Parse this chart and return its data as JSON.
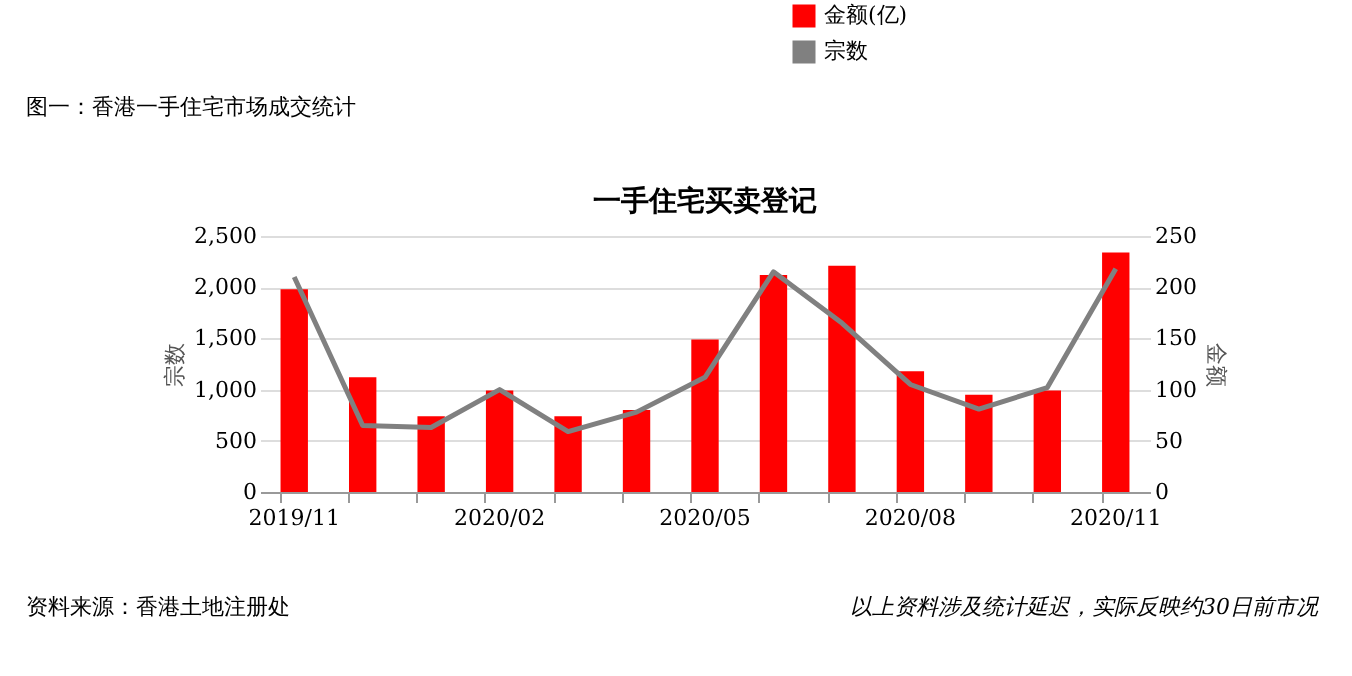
{
  "chart_data": {
    "type": "bar",
    "title": "一手住宅买卖登记",
    "annotations": [
      "图一：香港一手住宅市场成交统计",
      "资料来源：香港土地注册处",
      "以上资料涉及统计延迟，实际反映约30日前市况"
    ],
    "categories": [
      "2019/11",
      null,
      null,
      "2020/02",
      null,
      null,
      "2020/05",
      null,
      null,
      "2020/08",
      null,
      null,
      "2020/11"
    ],
    "series": [
      {
        "name": "金额(亿)",
        "axis": "y2",
        "color": "#ff0000",
        "values": [
          198,
          112,
          74,
          99,
          74,
          80,
          149,
          212,
          221,
          118,
          95,
          99,
          234
        ]
      },
      {
        "name": "宗数",
        "type": "line",
        "axis": "y",
        "color": "#808080",
        "values": [
          2100,
          650,
          630,
          1000,
          590,
          780,
          1120,
          2150,
          1650,
          1050,
          810,
          1020,
          2180
        ]
      }
    ],
    "ylabel": "宗数",
    "y2label": "金额",
    "ylim": [
      0,
      2500
    ],
    "yticks": [
      0,
      {
        "value": 500,
        "label": "500"
      },
      {
        "value": 1000,
        "label": "1,000"
      },
      {
        "value": 1500,
        "label": "1,500"
      },
      {
        "value": 2000,
        "label": "2,000"
      },
      {
        "value": 2500,
        "label": "2,500"
      }
    ],
    "y2lim": [
      0,
      250
    ],
    "y2ticks": [
      0,
      50,
      100,
      150,
      200,
      250
    ],
    "grid": "y",
    "legend": "top right",
    "marker": "none",
    "line_style": "solid"
  }
}
